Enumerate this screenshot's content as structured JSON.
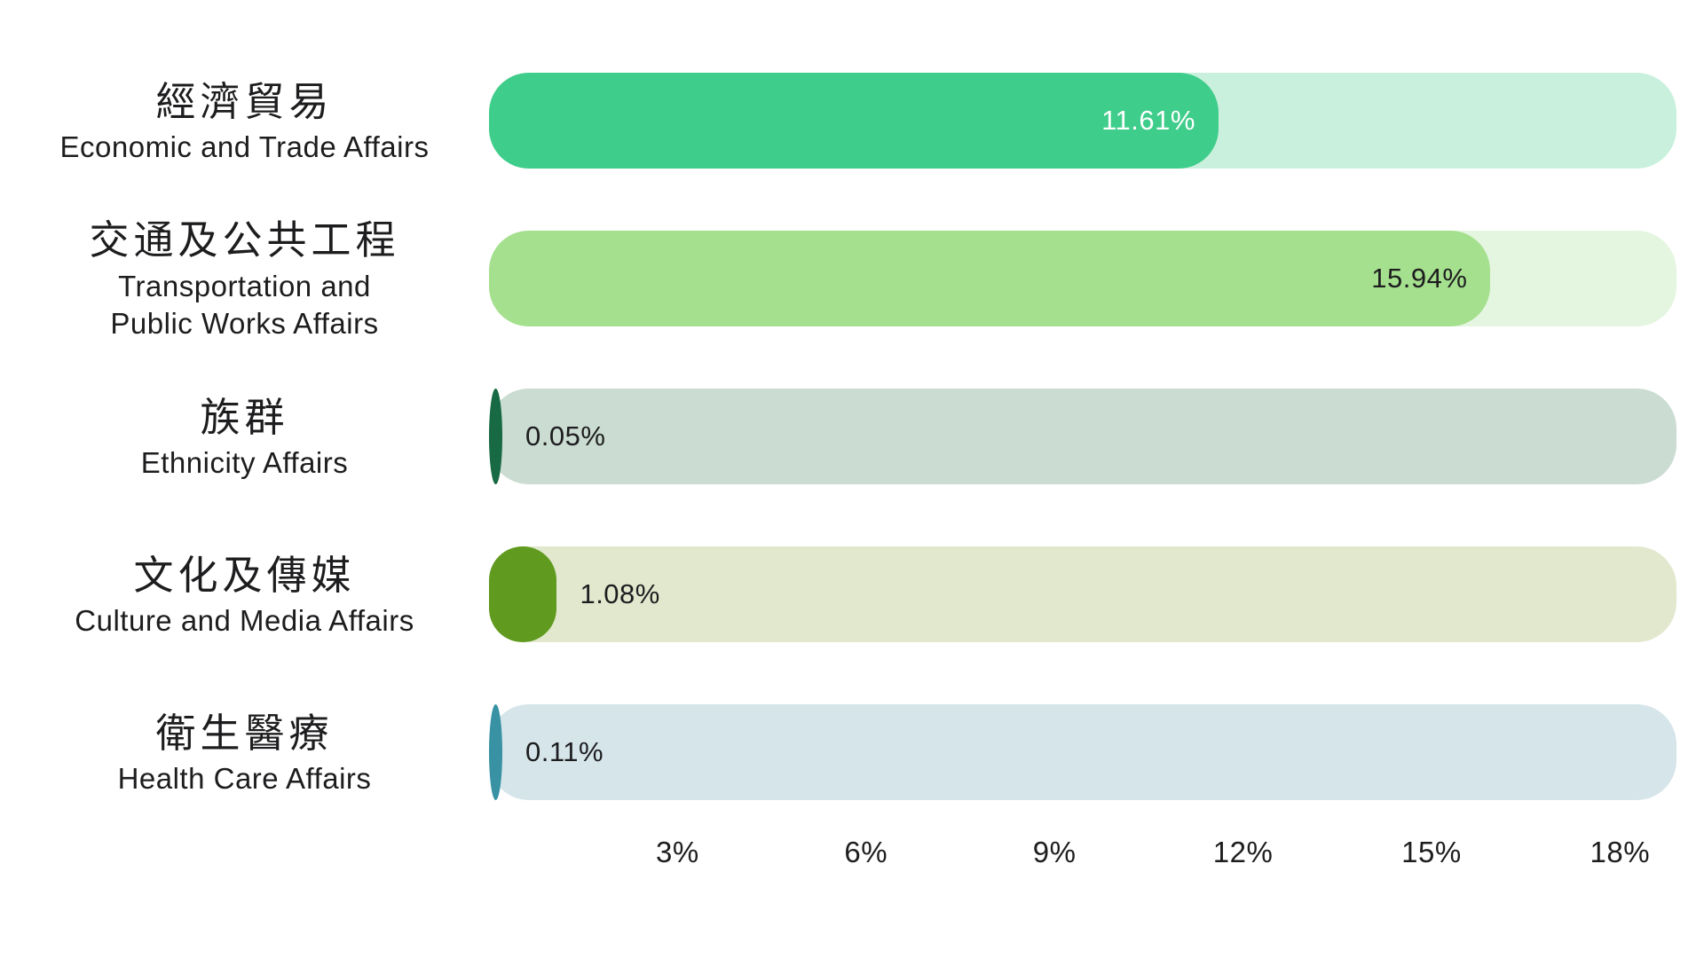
{
  "chart_data": {
    "type": "bar",
    "orientation": "horizontal",
    "title": "",
    "xlabel": "",
    "ylabel": "",
    "unit": "%",
    "xlim": [
      0,
      18.9
    ],
    "grid": false,
    "legend": "none",
    "background_color": "#ffffff",
    "text_color": "#1d1d1f",
    "x_tick_values": [
      3,
      6,
      9,
      12,
      15,
      18
    ],
    "x_ticks": [
      "3%",
      "6%",
      "9%",
      "12%",
      "15%",
      "18%"
    ],
    "rows": [
      {
        "label_zh": "經濟貿易",
        "label_en_lines": [
          "Economic and Trade Affairs"
        ],
        "value": 11.61,
        "value_label": "11.61%",
        "fill_color": "#3ecd8a",
        "track_color": "#c9f0dd",
        "value_label_inside": true,
        "value_label_color": "#ffffff"
      },
      {
        "label_zh": "交通及公共工程",
        "label_en_lines": [
          "Transportation and",
          "Public Works Affairs"
        ],
        "value": 15.94,
        "value_label": "15.94%",
        "fill_color": "#a5e08e",
        "track_color": "#e4f6e0",
        "value_label_inside": true,
        "value_label_color": "#1d1d1f"
      },
      {
        "label_zh": "族群",
        "label_en_lines": [
          "Ethnicity Affairs"
        ],
        "value": 0.05,
        "value_label": "0.05%",
        "fill_color": "#176a43",
        "track_color": "#cbdcd2",
        "value_label_inside": false,
        "value_label_color": "#1d1d1f"
      },
      {
        "label_zh": "文化及傳媒",
        "label_en_lines": [
          "Culture and Media Affairs"
        ],
        "value": 1.08,
        "value_label": "1.08%",
        "fill_color": "#609a1e",
        "track_color": "#e1e8ce",
        "value_label_inside": false,
        "value_label_color": "#1d1d1f"
      },
      {
        "label_zh": "衛生醫療",
        "label_en_lines": [
          "Health Care Affairs"
        ],
        "value": 0.11,
        "value_label": "0.11%",
        "fill_color": "#3992a4",
        "track_color": "#d5e5ea",
        "value_label_inside": false,
        "value_label_color": "#1d1d1f"
      }
    ]
  }
}
